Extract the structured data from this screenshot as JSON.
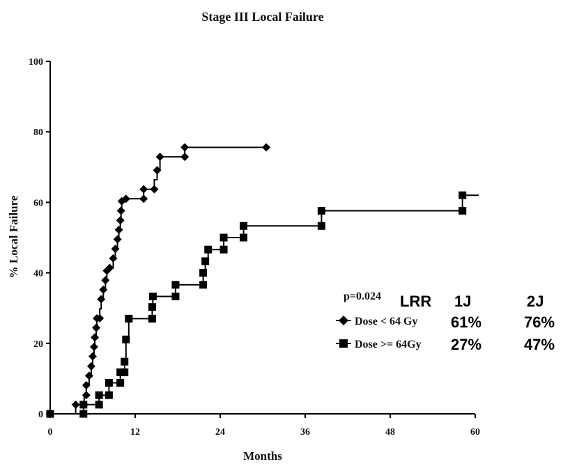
{
  "chart_data": {
    "type": "line",
    "title": "Stage III Local Failure",
    "xlabel": "Months",
    "ylabel": "% Local Failure",
    "xlim": [
      0,
      60
    ],
    "ylim": [
      0,
      100
    ],
    "x_ticks": [
      0,
      12,
      24,
      36,
      48,
      60
    ],
    "y_ticks": [
      0,
      20,
      40,
      60,
      80,
      100
    ],
    "grid": false,
    "legend_position": "right",
    "series": [
      {
        "name": "Dose < 64 Gy",
        "marker": "diamond",
        "points": [
          [
            0,
            0
          ],
          [
            3.6,
            0
          ],
          [
            3.6,
            2.6
          ],
          [
            4.8,
            2.6
          ],
          [
            4.8,
            5.3
          ],
          [
            5.1,
            5.3
          ],
          [
            5.1,
            8.1
          ],
          [
            5.5,
            8.1
          ],
          [
            5.5,
            10.8
          ],
          [
            5.8,
            10.8
          ],
          [
            5.8,
            13.5
          ],
          [
            6.0,
            13.5
          ],
          [
            6.0,
            16.3
          ],
          [
            6.2,
            16.3
          ],
          [
            6.2,
            19.0
          ],
          [
            6.3,
            19.0
          ],
          [
            6.3,
            21.7
          ],
          [
            6.5,
            21.7
          ],
          [
            6.5,
            24.4
          ],
          [
            6.6,
            24.4
          ],
          [
            6.6,
            27.1
          ],
          [
            7.0,
            27.1
          ],
          [
            7.0,
            29.8
          ],
          [
            7.2,
            29.8
          ],
          [
            7.2,
            32.5
          ],
          [
            7.5,
            32.5
          ],
          [
            7.5,
            35.2
          ],
          [
            7.8,
            35.2
          ],
          [
            7.8,
            37.9
          ],
          [
            8.0,
            37.9
          ],
          [
            8.0,
            40.6
          ],
          [
            8.4,
            40.6
          ],
          [
            8.4,
            41.4
          ],
          [
            8.9,
            41.4
          ],
          [
            8.9,
            44.1
          ],
          [
            9.2,
            44.1
          ],
          [
            9.2,
            46.8
          ],
          [
            9.5,
            46.8
          ],
          [
            9.5,
            49.5
          ],
          [
            9.7,
            49.5
          ],
          [
            9.7,
            52.2
          ],
          [
            9.9,
            52.2
          ],
          [
            9.9,
            54.9
          ],
          [
            10.0,
            54.9
          ],
          [
            10.0,
            57.6
          ],
          [
            10.1,
            57.6
          ],
          [
            10.1,
            60.3
          ],
          [
            10.7,
            60.3
          ],
          [
            10.7,
            61.0
          ],
          [
            13.2,
            61.0
          ],
          [
            13.2,
            63.7
          ],
          [
            14.7,
            63.7
          ],
          [
            14.7,
            66.4
          ],
          [
            15.1,
            66.4
          ],
          [
            15.1,
            69.1
          ],
          [
            15.5,
            69.1
          ],
          [
            15.5,
            72.9
          ],
          [
            19.0,
            72.9
          ],
          [
            19.0,
            75.6
          ],
          [
            30.5,
            75.6
          ]
        ],
        "markers": [
          [
            3.6,
            2.6
          ],
          [
            4.8,
            2.6
          ],
          [
            5.1,
            5.3
          ],
          [
            5.1,
            8.1
          ],
          [
            5.5,
            10.8
          ],
          [
            5.8,
            13.5
          ],
          [
            6.0,
            16.3
          ],
          [
            6.2,
            19.0
          ],
          [
            6.3,
            21.7
          ],
          [
            6.5,
            24.4
          ],
          [
            6.6,
            27.1
          ],
          [
            7.0,
            27.1
          ],
          [
            7.2,
            32.5
          ],
          [
            7.5,
            35.2
          ],
          [
            7.8,
            37.9
          ],
          [
            8.0,
            40.6
          ],
          [
            8.4,
            41.4
          ],
          [
            8.9,
            44.1
          ],
          [
            9.2,
            46.8
          ],
          [
            9.5,
            49.5
          ],
          [
            9.7,
            52.2
          ],
          [
            9.9,
            54.9
          ],
          [
            10.0,
            57.6
          ],
          [
            10.1,
            60.3
          ],
          [
            10.7,
            61.0
          ],
          [
            13.2,
            61.0
          ],
          [
            13.2,
            63.7
          ],
          [
            14.7,
            63.7
          ],
          [
            15.1,
            69.1
          ],
          [
            15.5,
            72.9
          ],
          [
            19.0,
            72.9
          ],
          [
            19.0,
            75.6
          ],
          [
            30.5,
            75.6
          ]
        ]
      },
      {
        "name": "Dose >= 64Gy",
        "marker": "square",
        "points": [
          [
            0,
            0
          ],
          [
            4.7,
            0
          ],
          [
            4.7,
            2.6
          ],
          [
            6.9,
            2.6
          ],
          [
            6.9,
            5.3
          ],
          [
            8.3,
            5.3
          ],
          [
            8.3,
            8.8
          ],
          [
            9.9,
            8.8
          ],
          [
            9.9,
            11.8
          ],
          [
            10.5,
            11.8
          ],
          [
            10.5,
            14.8
          ],
          [
            10.7,
            14.8
          ],
          [
            10.7,
            21.1
          ],
          [
            11.1,
            21.1
          ],
          [
            11.1,
            27.0
          ],
          [
            14.4,
            27.0
          ],
          [
            14.4,
            30.3
          ],
          [
            14.5,
            30.3
          ],
          [
            14.5,
            33.3
          ],
          [
            17.7,
            33.3
          ],
          [
            17.7,
            36.6
          ],
          [
            21.6,
            36.6
          ],
          [
            21.6,
            40.0
          ],
          [
            21.9,
            40.0
          ],
          [
            21.9,
            43.3
          ],
          [
            22.3,
            43.3
          ],
          [
            22.3,
            46.6
          ],
          [
            24.5,
            46.6
          ],
          [
            24.5,
            50.0
          ],
          [
            27.3,
            50.0
          ],
          [
            27.3,
            53.3
          ],
          [
            38.3,
            53.3
          ],
          [
            38.3,
            57.6
          ],
          [
            58.2,
            57.6
          ],
          [
            58.2,
            62.0
          ],
          [
            60.5,
            62.0
          ]
        ],
        "markers": [
          [
            0,
            0
          ],
          [
            4.7,
            0
          ],
          [
            4.7,
            2.6
          ],
          [
            6.9,
            2.6
          ],
          [
            6.9,
            5.3
          ],
          [
            8.3,
            5.3
          ],
          [
            8.3,
            8.8
          ],
          [
            9.9,
            8.8
          ],
          [
            9.9,
            11.8
          ],
          [
            10.5,
            11.8
          ],
          [
            10.5,
            14.8
          ],
          [
            10.7,
            21.1
          ],
          [
            11.1,
            27.0
          ],
          [
            14.4,
            27.0
          ],
          [
            14.4,
            30.3
          ],
          [
            14.5,
            33.3
          ],
          [
            17.7,
            33.3
          ],
          [
            17.7,
            36.6
          ],
          [
            21.6,
            36.6
          ],
          [
            21.6,
            40.0
          ],
          [
            21.9,
            43.3
          ],
          [
            22.3,
            46.6
          ],
          [
            24.5,
            46.6
          ],
          [
            24.5,
            50.0
          ],
          [
            27.3,
            50.0
          ],
          [
            27.3,
            53.3
          ],
          [
            38.3,
            53.3
          ],
          [
            38.3,
            57.6
          ],
          [
            58.2,
            57.6
          ],
          [
            58.2,
            62.0
          ]
        ]
      }
    ],
    "annotations": {
      "p_value": "p=0.024",
      "table_header": [
        "LRR",
        "1J",
        "2J"
      ],
      "table_rows": [
        [
          "61%",
          "76%"
        ],
        [
          "27%",
          "47%"
        ]
      ]
    }
  }
}
